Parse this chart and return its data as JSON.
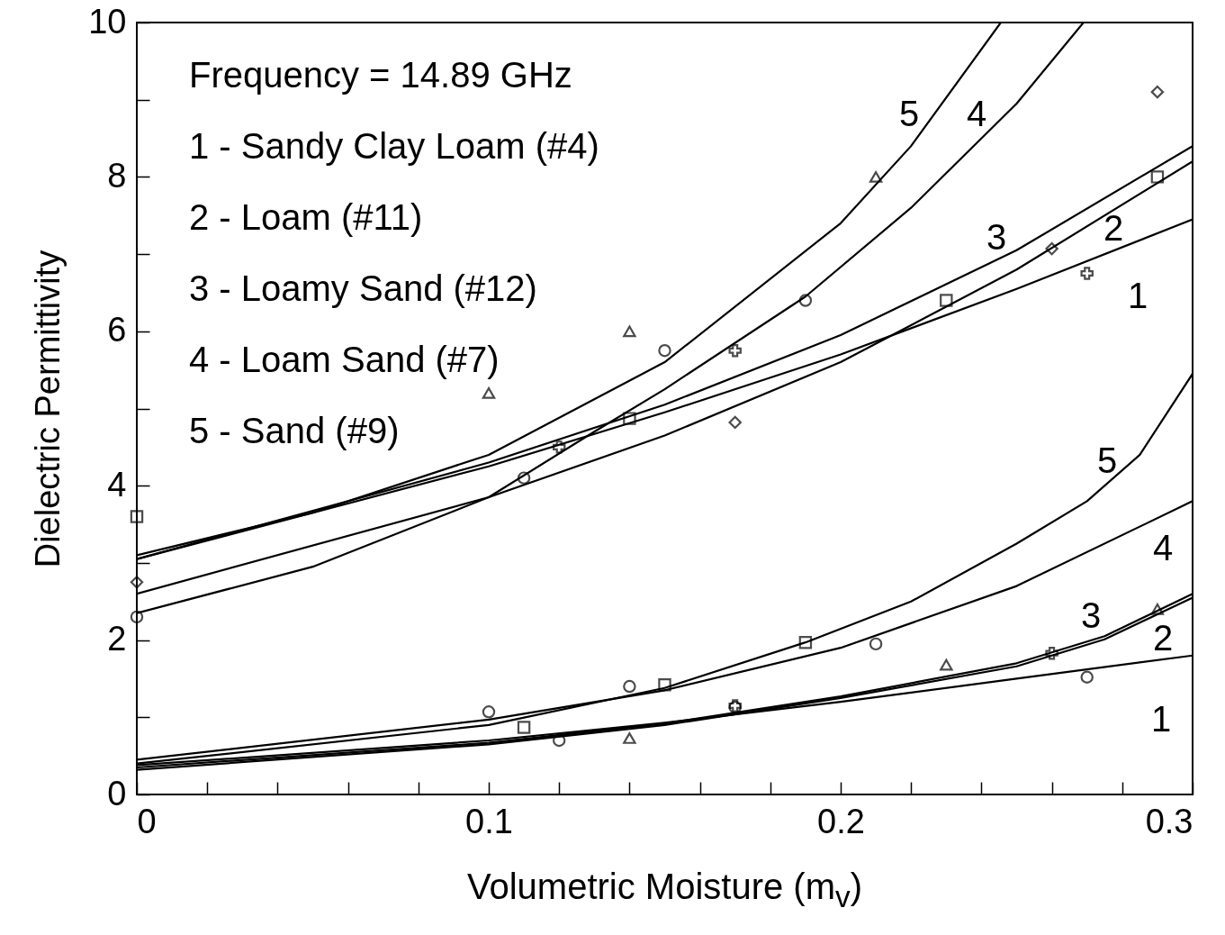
{
  "chart_data": {
    "type": "line",
    "xlabel": "Volumetric Moisture (m$_{v}$)",
    "ylabel": "Dielectric Permittivity",
    "xlim": [
      0,
      0.3
    ],
    "ylim": [
      0,
      10
    ],
    "xticks": [
      0,
      {
        "value": 0.02,
        "label": null
      },
      {
        "value": 0.04,
        "label": null
      },
      {
        "value": 0.06,
        "label": null
      },
      {
        "value": 0.08,
        "label": null
      },
      "0.1",
      {
        "value": 0.12,
        "label": null
      },
      {
        "value": 0.14,
        "label": null
      },
      {
        "value": 0.16,
        "label": null
      },
      {
        "value": 0.18,
        "label": null
      },
      {
        "value": 0.2,
        "label": "0.2"
      },
      {
        "value": 0.22,
        "label": null
      },
      {
        "value": 0.24,
        "label": null
      },
      {
        "value": 0.26,
        "label": null
      },
      {
        "value": 0.28,
        "label": null
      },
      {
        "value": 0.3,
        "label": "0.3"
      }
    ],
    "yticks": [
      0,
      {
        "value": 1,
        "label": null
      },
      2,
      {
        "value": 3,
        "label": null
      },
      4,
      {
        "value": 5,
        "label": null
      },
      6,
      {
        "value": 7,
        "label": null
      },
      8,
      {
        "value": 9,
        "label": null
      },
      10
    ],
    "grid": false,
    "series": [
      {
        "color": "#000000",
        "x": [
          0,
          0.05,
          0.1,
          0.15,
          0.2,
          0.22,
          0.2455
        ],
        "values": [
          3.1,
          3.65,
          4.4,
          5.6,
          7.4,
          8.4,
          10
        ]
      },
      {
        "color": "#000000",
        "x": [
          0,
          0.05,
          0.1,
          0.13,
          0.15,
          0.19,
          0.22,
          0.25,
          0.269
        ],
        "values": [
          2.35,
          2.95,
          3.85,
          4.7,
          5.25,
          6.45,
          7.6,
          8.95,
          10
        ]
      },
      {
        "color": "#000000",
        "x": [
          0,
          0.1,
          0.15,
          0.2,
          0.25,
          0.3
        ],
        "values": [
          3.05,
          4.3,
          5.05,
          5.95,
          7.05,
          8.4
        ]
      },
      {
        "color": "#000000",
        "x": [
          0,
          0.1,
          0.15,
          0.2,
          0.25,
          0.3
        ],
        "values": [
          2.6,
          3.85,
          4.65,
          5.6,
          6.8,
          8.2
        ]
      },
      {
        "color": "#000000",
        "x": [
          0,
          0.1,
          0.15,
          0.2,
          0.25,
          0.3
        ],
        "values": [
          3.05,
          4.25,
          4.95,
          5.7,
          6.55,
          7.45
        ]
      },
      {
        "color": "#000000",
        "x": [
          0,
          0.1,
          0.15,
          0.19,
          0.22,
          0.25,
          0.27,
          0.285,
          0.3
        ],
        "values": [
          0.4,
          0.9,
          1.38,
          1.97,
          2.5,
          3.25,
          3.8,
          4.4,
          5.45
        ]
      },
      {
        "color": "#000000",
        "x": [
          0,
          0.1,
          0.15,
          0.2,
          0.25,
          0.3
        ],
        "values": [
          0.45,
          0.97,
          1.35,
          1.9,
          2.7,
          3.8
        ]
      },
      {
        "color": "#000000",
        "x": [
          0,
          0.1,
          0.15,
          0.2,
          0.25,
          0.275,
          0.3
        ],
        "values": [
          0.35,
          0.67,
          0.92,
          1.27,
          1.7,
          2.05,
          2.6
        ]
      },
      {
        "color": "#000000",
        "x": [
          0,
          0.1,
          0.15,
          0.2,
          0.25,
          0.275,
          0.3
        ],
        "values": [
          0.32,
          0.65,
          0.9,
          1.25,
          1.66,
          2.01,
          2.55
        ]
      },
      {
        "color": "#000000",
        "x": [
          0,
          0.1,
          0.15,
          0.2,
          0.25,
          0.3
        ],
        "values": [
          0.38,
          0.7,
          0.93,
          1.2,
          1.5,
          1.8
        ]
      },
      {
        "type": "scatter",
        "marker": "triangle",
        "color": "#000000",
        "x": [
          0.1,
          0.14,
          0.21
        ],
        "values": [
          5.2,
          6.0,
          8.0
        ]
      },
      {
        "type": "scatter",
        "marker": "circle",
        "color": "#000000",
        "x": [
          0,
          0.11,
          0.15,
          0.19
        ],
        "values": [
          2.3,
          4.1,
          5.75,
          6.4
        ]
      },
      {
        "type": "scatter",
        "marker": "cross",
        "color": "#000000",
        "x": [
          0.12,
          0.17,
          0.27
        ],
        "values": [
          4.5,
          5.75,
          6.75
        ]
      },
      {
        "type": "scatter",
        "marker": "square",
        "color": "#000000",
        "x": [
          0,
          0.14,
          0.23,
          0.29
        ],
        "values": [
          3.6,
          4.87,
          6.4,
          8.0
        ]
      },
      {
        "type": "scatter",
        "marker": "diamond",
        "color": "#000000",
        "x": [
          0,
          0.17,
          0.26,
          0.29
        ],
        "values": [
          2.75,
          4.82,
          7.07,
          9.1
        ]
      },
      {
        "type": "scatter",
        "marker": "circle",
        "color": "#000000",
        "x": [
          0.1,
          0.14,
          0.21
        ],
        "values": [
          1.07,
          1.4,
          1.95
        ]
      },
      {
        "type": "scatter",
        "marker": "square",
        "color": "#000000",
        "x": [
          0.11,
          0.15,
          0.19
        ],
        "values": [
          0.87,
          1.42,
          1.97
        ]
      },
      {
        "type": "scatter",
        "marker": "triangle",
        "color": "#000000",
        "x": [
          0.14,
          0.23,
          0.29
        ],
        "values": [
          0.73,
          1.68,
          2.4
        ]
      },
      {
        "type": "scatter",
        "marker": "circle",
        "color": "#000000",
        "x": [
          0.12,
          0.17,
          0.27
        ],
        "values": [
          0.7,
          1.13,
          1.52
        ]
      },
      {
        "type": "scatter",
        "marker": "cross",
        "color": "#000000",
        "x": [
          0.17,
          0.26
        ],
        "values": [
          1.15,
          1.83
        ]
      }
    ],
    "annotations": [
      "Frequency = 14.89 GHz",
      "1 - Sandy Clay Loam (#4)",
      "2 - Loam (#11)",
      "3 - Loamy Sand (#12)",
      "4 - Loam Sand (#7)",
      "5 - Sand (#9)",
      "5",
      "4",
      "3",
      "2",
      "1",
      "5",
      "4",
      "3",
      "2",
      "1"
    ]
  }
}
